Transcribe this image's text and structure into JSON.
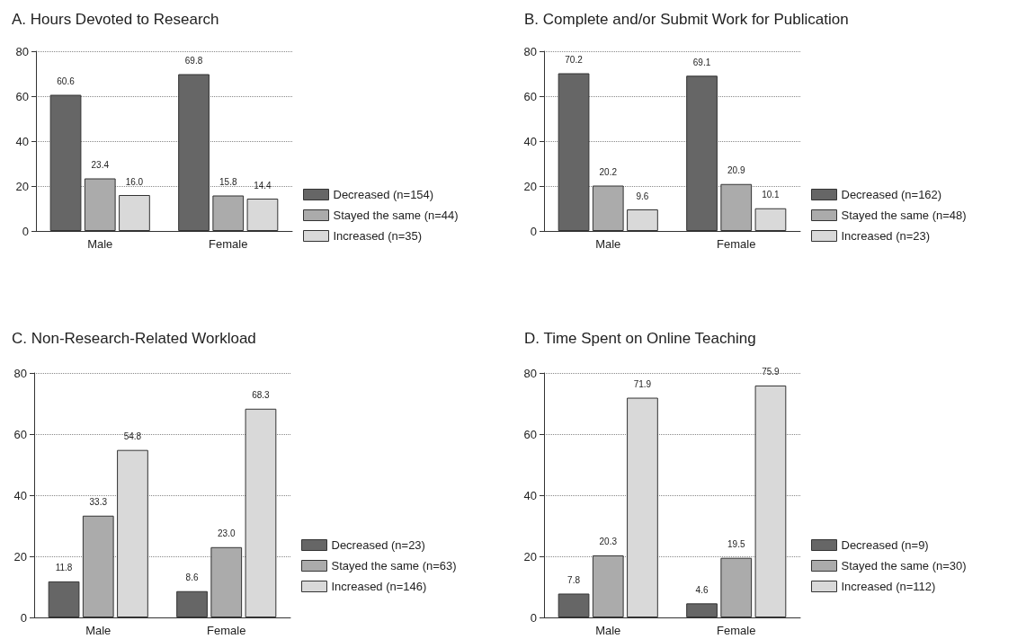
{
  "chart_data": [
    {
      "type": "bar",
      "title": "A. Hours Devoted to Research",
      "categories": [
        "Male",
        "Female"
      ],
      "ylim": [
        0,
        80
      ],
      "yticks": [
        0,
        20,
        40,
        60,
        80
      ],
      "grid": "y",
      "legend": "right",
      "series": [
        {
          "name": "Decreased (n=154)",
          "color": "#666666",
          "values": [
            60.6,
            69.8
          ],
          "value_labels": [
            "60.6",
            "69.8"
          ]
        },
        {
          "name": "Stayed the same (n=44)",
          "color": "#ababab",
          "values": [
            23.4,
            15.8
          ],
          "value_labels": [
            "23.4",
            "15.8"
          ]
        },
        {
          "name": "Increased (n=35)",
          "color": "#d9d9d9",
          "values": [
            16.0,
            14.4
          ],
          "value_labels": [
            "16.0",
            "14.4"
          ]
        }
      ]
    },
    {
      "type": "bar",
      "title": "B. Complete and/or Submit Work for Publication",
      "categories": [
        "Male",
        "Female"
      ],
      "ylim": [
        0,
        80
      ],
      "yticks": [
        0,
        20,
        40,
        60,
        80
      ],
      "grid": "y",
      "legend": "right",
      "series": [
        {
          "name": "Decreased (n=162)",
          "color": "#666666",
          "values": [
            70.2,
            69.1
          ],
          "value_labels": [
            "70.2",
            "69.1"
          ]
        },
        {
          "name": "Stayed the same (n=48)",
          "color": "#ababab",
          "values": [
            20.2,
            20.9
          ],
          "value_labels": [
            "20.2",
            "20.9"
          ]
        },
        {
          "name": "Increased (n=23)",
          "color": "#d9d9d9",
          "values": [
            9.6,
            10.1
          ],
          "value_labels": [
            "9.6",
            "10.1"
          ]
        }
      ]
    },
    {
      "type": "bar",
      "title": "C. Non-Research-Related Workload",
      "categories": [
        "Male",
        "Female"
      ],
      "ylim": [
        0,
        80
      ],
      "yticks": [
        0,
        20,
        40,
        60,
        80
      ],
      "grid": "y",
      "legend": "right",
      "series": [
        {
          "name": "Decreased (n=23)",
          "color": "#666666",
          "values": [
            11.8,
            8.6
          ],
          "value_labels": [
            "11.8",
            "8.6"
          ]
        },
        {
          "name": "Stayed the same (n=63)",
          "color": "#ababab",
          "values": [
            33.3,
            23.0
          ],
          "value_labels": [
            "33.3",
            "23.0"
          ]
        },
        {
          "name": "Increased (n=146)",
          "color": "#d9d9d9",
          "values": [
            54.8,
            68.3
          ],
          "value_labels": [
            "54.8",
            "68.3"
          ]
        }
      ]
    },
    {
      "type": "bar",
      "title": "D. Time Spent on Online Teaching",
      "categories": [
        "Male",
        "Female"
      ],
      "ylim": [
        0,
        80
      ],
      "yticks": [
        0,
        20,
        40,
        60,
        80
      ],
      "grid": "y",
      "legend": "right",
      "series": [
        {
          "name": "Decreased (n=9)",
          "color": "#666666",
          "values": [
            7.8,
            4.6
          ],
          "value_labels": [
            "7.8",
            "4.6"
          ]
        },
        {
          "name": "Stayed the same (n=30)",
          "color": "#ababab",
          "values": [
            20.3,
            19.5
          ],
          "value_labels": [
            "20.3",
            "19.5"
          ]
        },
        {
          "name": "Increased (n=112)",
          "color": "#d9d9d9",
          "values": [
            71.9,
            75.9
          ],
          "value_labels": [
            "71.9",
            "75.9"
          ]
        }
      ]
    }
  ]
}
